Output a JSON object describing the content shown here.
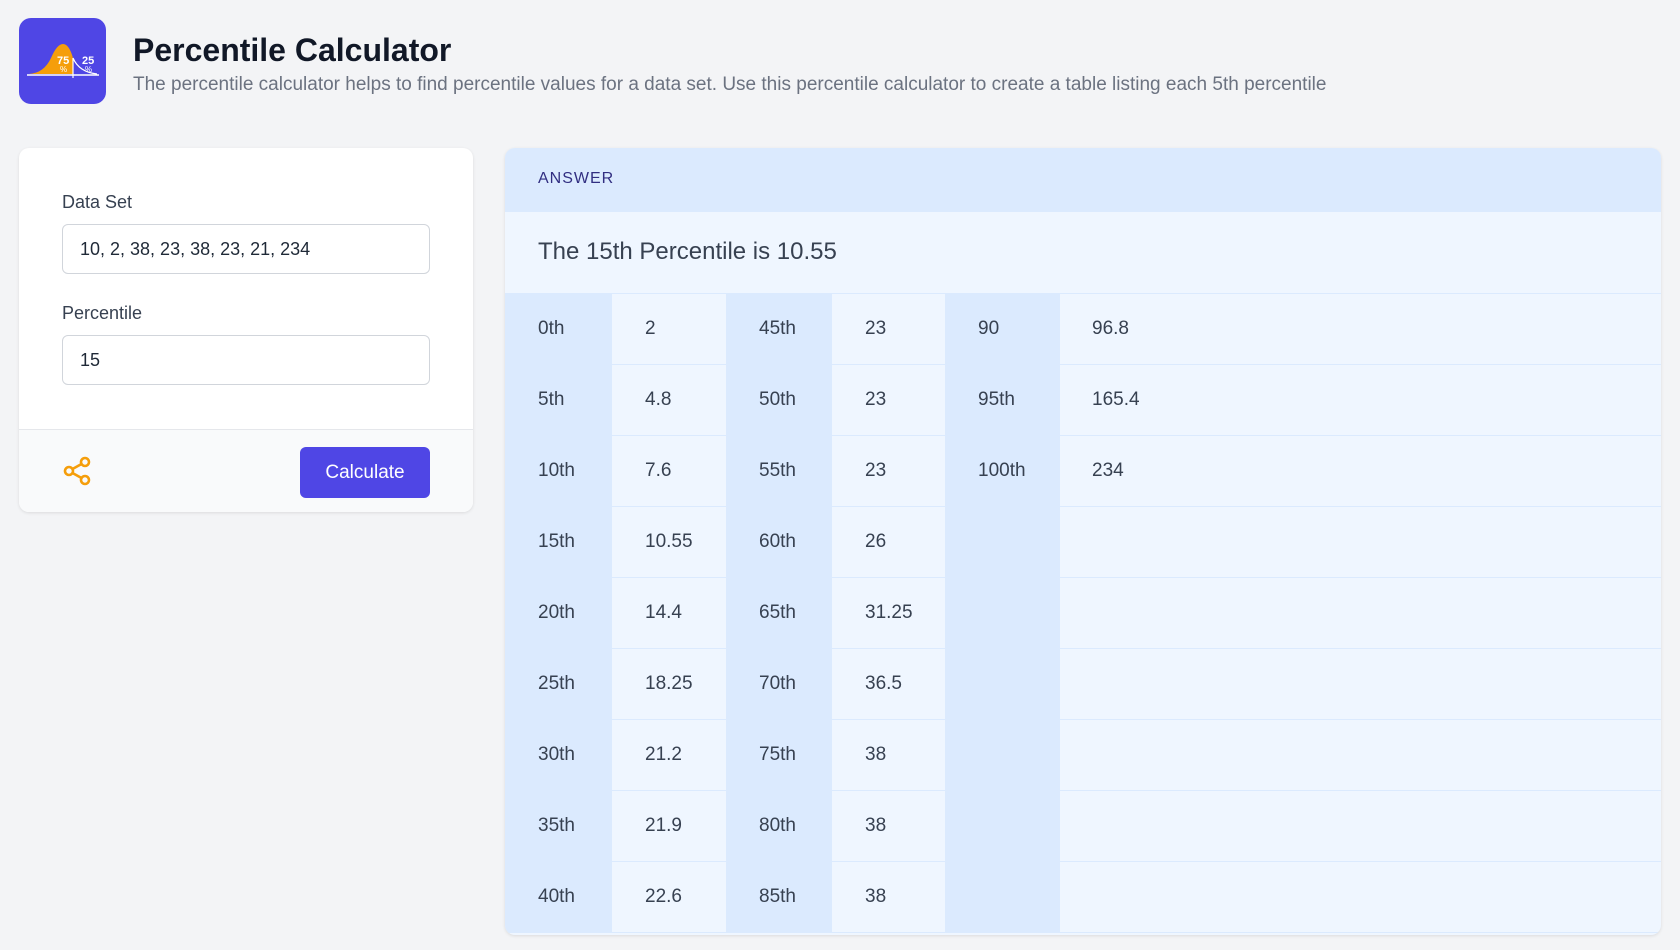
{
  "header": {
    "title": "Percentile Calculator",
    "subtitle": "The percentile calculator helps to find percentile values for a data set. Use this percentile calculator to create a table listing each 5th percentile",
    "logo_text": [
      "75 %",
      "25 %"
    ]
  },
  "form": {
    "dataset_label": "Data Set",
    "dataset_value": "10, 2, 38, 23, 38, 23, 21, 234",
    "percentile_label": "Percentile",
    "percentile_value": "15",
    "calculate_label": "Calculate",
    "share_icon": "share-icon"
  },
  "colors": {
    "accent": "#4f46e5",
    "share": "#f59e0b",
    "panel": "#eff6ff",
    "panel_header": "#dbeafe"
  },
  "answer": {
    "heading": "ANSWER",
    "result": "The 15th Percentile is 10.55",
    "rows": [
      [
        "0th",
        "2",
        "45th",
        "23",
        "90",
        "96.8"
      ],
      [
        "5th",
        "4.8",
        "50th",
        "23",
        "95th",
        "165.4"
      ],
      [
        "10th",
        "7.6",
        "55th",
        "23",
        "100th",
        "234"
      ],
      [
        "15th",
        "10.55",
        "60th",
        "26",
        "",
        ""
      ],
      [
        "20th",
        "14.4",
        "65th",
        "31.25",
        "",
        ""
      ],
      [
        "25th",
        "18.25",
        "70th",
        "36.5",
        "",
        ""
      ],
      [
        "30th",
        "21.2",
        "75th",
        "38",
        "",
        ""
      ],
      [
        "35th",
        "21.9",
        "80th",
        "38",
        "",
        ""
      ],
      [
        "40th",
        "22.6",
        "85th",
        "38",
        "",
        ""
      ]
    ]
  }
}
